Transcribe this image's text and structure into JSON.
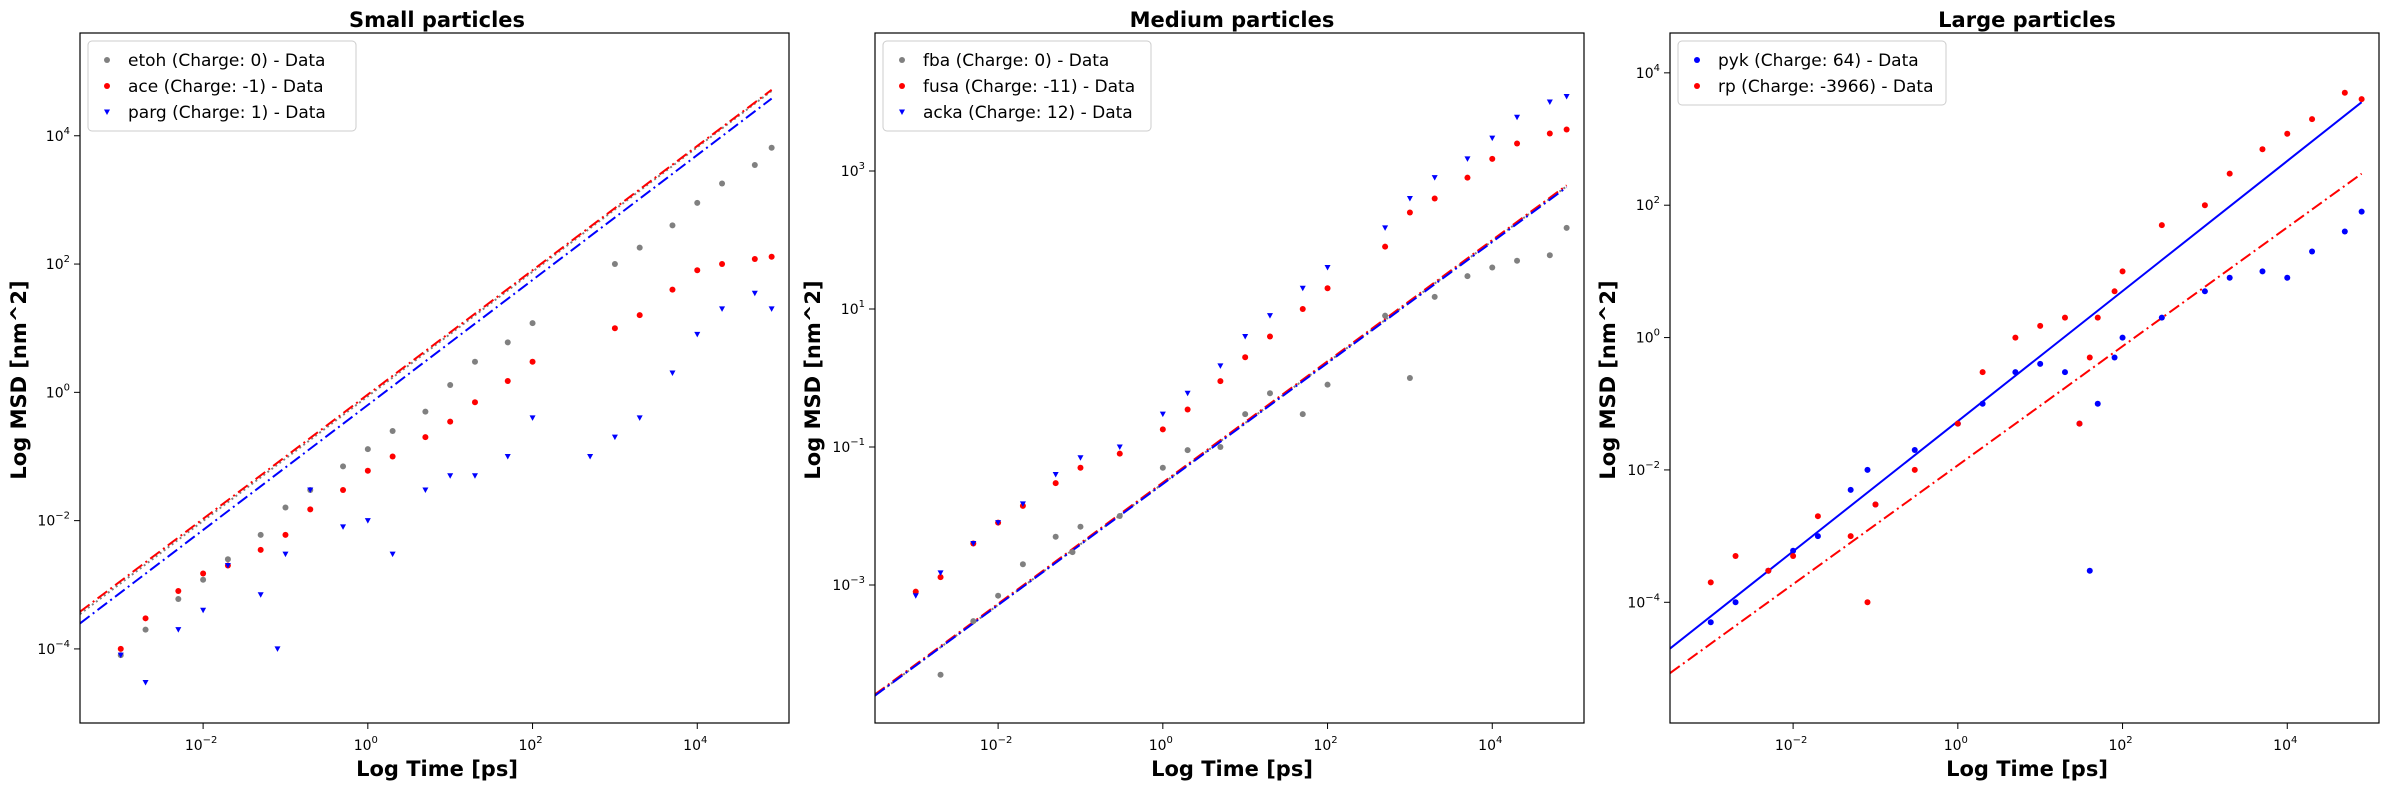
{
  "figure": {
    "background": "#ffffff"
  },
  "chart_data": [
    {
      "type": "scatter",
      "title": "Small particles",
      "xlabel": "Log Time [ps]",
      "ylabel": "Log MSD [nm^2]",
      "xscale": "log",
      "yscale": "log",
      "xlim": [
        0.00032,
        130000
      ],
      "ylim": [
        7e-06,
        400000
      ],
      "xticks": [
        {
          "exp": "−2",
          "v": 0.01
        },
        {
          "exp": "0",
          "v": 1
        },
        {
          "exp": "2",
          "v": 100
        },
        {
          "exp": "4",
          "v": 10000
        }
      ],
      "yticks": [
        {
          "exp": "−4",
          "v": 0.0001
        },
        {
          "exp": "−2",
          "v": 0.01
        },
        {
          "exp": "0",
          "v": 1
        },
        {
          "exp": "2",
          "v": 100
        },
        {
          "exp": "4",
          "v": 10000
        }
      ],
      "grid": false,
      "legend_position": "top-left",
      "series": [
        {
          "name": "etoh (Charge: 0) - Data",
          "color": "#808080",
          "marker": "circle",
          "x": [
            0.001,
            0.002,
            0.005,
            0.01,
            0.02,
            0.05,
            0.1,
            0.2,
            0.5,
            1,
            2,
            5,
            10,
            20,
            50,
            100,
            1000,
            2000,
            5000,
            10000,
            20000,
            50000,
            80000
          ],
          "y": [
            8e-05,
            0.0002,
            0.0006,
            0.0012,
            0.0025,
            0.006,
            0.016,
            0.03,
            0.07,
            0.13,
            0.25,
            0.5,
            1.3,
            3,
            6,
            12,
            100,
            180,
            400,
            900,
            1800,
            3500,
            6500
          ]
        },
        {
          "name": "ace (Charge: -1) - Data",
          "color": "#ff0000",
          "marker": "circle",
          "x": [
            0.001,
            0.002,
            0.005,
            0.01,
            0.02,
            0.05,
            0.1,
            0.2,
            0.5,
            1,
            2,
            5,
            10,
            20,
            50,
            100,
            1000,
            2000,
            5000,
            10000,
            20000,
            50000,
            80000
          ],
          "y": [
            0.0001,
            0.0003,
            0.0008,
            0.0015,
            0.002,
            0.0035,
            0.006,
            0.015,
            0.03,
            0.06,
            0.1,
            0.2,
            0.35,
            0.7,
            1.5,
            3,
            10,
            16,
            40,
            80,
            100,
            120,
            130
          ]
        },
        {
          "name": "parg (Charge: 1) - Data",
          "color": "#0000ff",
          "marker": "triangle",
          "x": [
            0.001,
            0.002,
            0.005,
            0.01,
            0.02,
            0.05,
            0.08,
            0.1,
            0.2,
            0.5,
            1,
            2,
            5,
            10,
            20,
            50,
            100,
            500,
            1000,
            2000,
            5000,
            10000,
            20000,
            50000,
            80000
          ],
          "y": [
            8e-05,
            3e-05,
            0.0002,
            0.0004,
            0.002,
            0.0007,
            0.0001,
            0.003,
            0.03,
            0.008,
            0.01,
            0.003,
            0.03,
            0.05,
            0.05,
            0.1,
            0.4,
            0.1,
            0.2,
            0.4,
            2,
            8,
            20,
            35,
            20
          ]
        }
      ],
      "fits": [
        {
          "color": "#808080",
          "style": "dotted",
          "x": [
            0.00032,
            80000
          ],
          "y": [
            0.00035,
            50000
          ]
        },
        {
          "color": "#ff0000",
          "style": "dashdot",
          "x": [
            0.00032,
            80000
          ],
          "y": [
            0.00038,
            52000
          ]
        },
        {
          "color": "#0000ff",
          "style": "dashdot",
          "x": [
            0.00032,
            80000
          ],
          "y": [
            0.00025,
            38000
          ]
        }
      ]
    },
    {
      "type": "scatter",
      "title": "Medium particles",
      "xlabel": "Log Time [ps]",
      "ylabel": "Log MSD [nm^2]",
      "xscale": "log",
      "yscale": "log",
      "xlim": [
        0.00032,
        130000
      ],
      "ylim": [
        1e-05,
        100000
      ],
      "xticks": [
        {
          "exp": "−2",
          "v": 0.01
        },
        {
          "exp": "0",
          "v": 1
        },
        {
          "exp": "2",
          "v": 100
        },
        {
          "exp": "4",
          "v": 10000
        }
      ],
      "yticks": [
        {
          "exp": "−3",
          "v": 0.001
        },
        {
          "exp": "−1",
          "v": 0.1
        },
        {
          "exp": "1",
          "v": 10
        },
        {
          "exp": "3",
          "v": 1000
        }
      ],
      "grid": false,
      "legend_position": "top-left",
      "series": [
        {
          "name": "fba (Charge: 0) - Data",
          "color": "#808080",
          "marker": "circle",
          "x": [
            0.002,
            0.005,
            0.01,
            0.02,
            0.05,
            0.08,
            0.1,
            0.3,
            1,
            2,
            5,
            10,
            20,
            50,
            100,
            500,
            1000,
            2000,
            5000,
            10000,
            20000,
            50000,
            80000
          ],
          "y": [
            5e-05,
            0.0003,
            0.0007,
            0.002,
            0.005,
            0.003,
            0.007,
            0.01,
            0.05,
            0.09,
            0.1,
            0.3,
            0.6,
            0.3,
            0.8,
            8,
            1,
            15,
            30,
            40,
            50,
            60,
            150
          ]
        },
        {
          "name": "fusa (Charge: -11) - Data",
          "color": "#ff0000",
          "marker": "circle",
          "x": [
            0.001,
            0.002,
            0.005,
            0.01,
            0.02,
            0.05,
            0.1,
            0.3,
            1,
            2,
            5,
            10,
            20,
            50,
            100,
            500,
            1000,
            2000,
            5000,
            10000,
            20000,
            50000,
            80000
          ],
          "y": [
            0.0008,
            0.0013,
            0.004,
            0.008,
            0.014,
            0.03,
            0.05,
            0.08,
            0.18,
            0.35,
            0.9,
            2,
            4,
            10,
            20,
            80,
            250,
            400,
            800,
            1500,
            2500,
            3500,
            4000
          ]
        },
        {
          "name": "acka (Charge: 12) - Data",
          "color": "#0000ff",
          "marker": "triangle",
          "x": [
            0.001,
            0.002,
            0.005,
            0.01,
            0.02,
            0.05,
            0.1,
            0.3,
            1,
            2,
            5,
            10,
            20,
            50,
            100,
            500,
            1000,
            2000,
            5000,
            10000,
            20000,
            50000,
            80000
          ],
          "y": [
            0.0007,
            0.0015,
            0.004,
            0.008,
            0.015,
            0.04,
            0.07,
            0.1,
            0.3,
            0.6,
            1.5,
            4,
            8,
            20,
            40,
            150,
            400,
            800,
            1500,
            3000,
            6000,
            10000,
            12000
          ]
        }
      ],
      "fits": [
        {
          "color": "#808080",
          "style": "dotted",
          "x": [
            0.00032,
            80000
          ],
          "y": [
            2.5e-05,
            600
          ]
        },
        {
          "color": "#ff0000",
          "style": "dashdot",
          "x": [
            0.00032,
            80000
          ],
          "y": [
            2.6e-05,
            620
          ]
        },
        {
          "color": "#0000ff",
          "style": "dashdot",
          "x": [
            0.00032,
            80000
          ],
          "y": [
            2.5e-05,
            580
          ]
        }
      ]
    },
    {
      "type": "scatter",
      "title": "Large particles",
      "xlabel": "Log Time [ps]",
      "ylabel": "Log MSD [nm^2]",
      "xscale": "log",
      "yscale": "log",
      "xlim": [
        0.00032,
        130000
      ],
      "ylim": [
        1.5e-06,
        40000
      ],
      "xticks": [
        {
          "exp": "−2",
          "v": 0.01
        },
        {
          "exp": "0",
          "v": 1
        },
        {
          "exp": "2",
          "v": 100
        },
        {
          "exp": "4",
          "v": 10000
        }
      ],
      "yticks": [
        {
          "exp": "−4",
          "v": 0.0001
        },
        {
          "exp": "−2",
          "v": 0.01
        },
        {
          "exp": "0",
          "v": 1
        },
        {
          "exp": "2",
          "v": 100
        },
        {
          "exp": "4",
          "v": 10000
        }
      ],
      "grid": false,
      "legend_position": "top-left",
      "series": [
        {
          "name": "pyk (Charge: 64) - Data",
          "color": "#0000ff",
          "marker": "circle",
          "x": [
            0.001,
            0.002,
            0.005,
            0.01,
            0.02,
            0.05,
            0.08,
            0.1,
            0.3,
            1,
            2,
            5,
            10,
            20,
            30,
            40,
            50,
            80,
            100,
            300,
            1000,
            2000,
            5000,
            10000,
            20000,
            50000,
            80000
          ],
          "y": [
            5e-05,
            0.0001,
            0.0003,
            0.0006,
            0.001,
            0.005,
            0.01,
            0.003,
            0.02,
            0.05,
            0.1,
            0.3,
            0.4,
            0.3,
            0.05,
            0.0003,
            0.1,
            0.5,
            1,
            2,
            5,
            8,
            10,
            8,
            20,
            40,
            80
          ]
        },
        {
          "name": "rp (Charge: -3966) - Data",
          "color": "#ff0000",
          "marker": "circle",
          "x": [
            0.001,
            0.002,
            0.005,
            0.01,
            0.02,
            0.05,
            0.08,
            0.1,
            0.3,
            1,
            2,
            5,
            10,
            20,
            30,
            40,
            50,
            80,
            100,
            300,
            1000,
            2000,
            5000,
            10000,
            20000,
            50000,
            80000
          ],
          "y": [
            0.0002,
            0.0005,
            0.0003,
            0.0005,
            0.002,
            0.001,
            0.0001,
            0.003,
            0.01,
            0.05,
            0.3,
            1,
            1.5,
            2,
            0.05,
            0.5,
            2,
            5,
            10,
            50,
            100,
            300,
            700,
            1200,
            2000,
            5000,
            4000
          ]
        }
      ],
      "fits": [
        {
          "color": "#0000ff",
          "style": "solid",
          "x": [
            0.00032,
            80000
          ],
          "y": [
            2e-05,
            3600
          ]
        },
        {
          "color": "#ff0000",
          "style": "dashdot",
          "x": [
            0.00032,
            80000
          ],
          "y": [
            8.5e-06,
            300
          ]
        }
      ]
    }
  ]
}
